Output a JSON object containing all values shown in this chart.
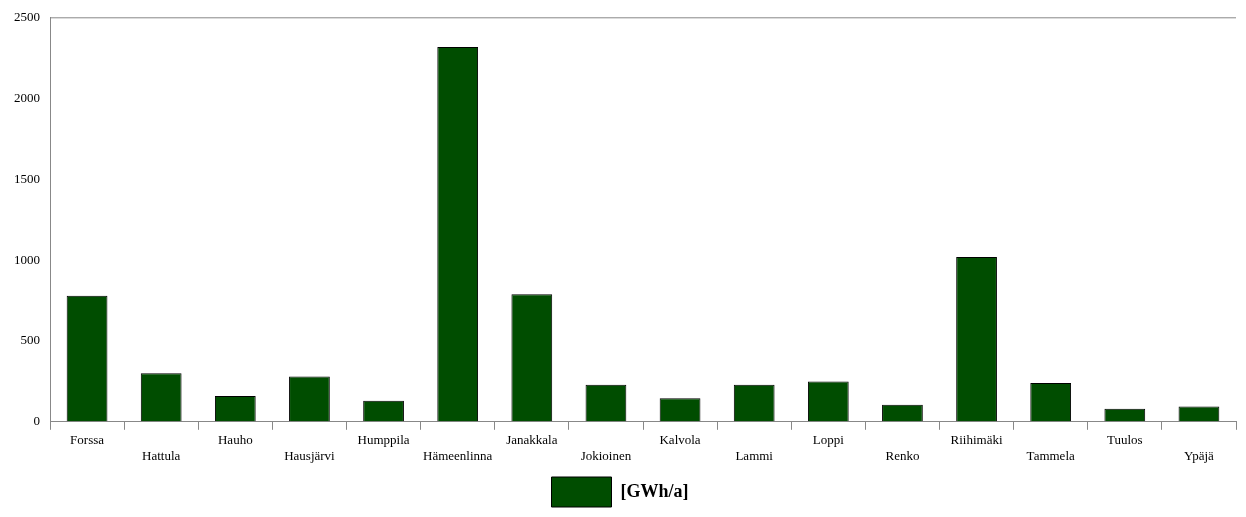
{
  "chart_data": {
    "type": "bar",
    "categories": [
      "Forssa",
      "Hattula",
      "Hauho",
      "Hausjärvi",
      "Humppila",
      "Hämeenlinna",
      "Janakkala",
      "Jokioinen",
      "Kalvola",
      "Lammi",
      "Loppi",
      "Renko",
      "Riihimäki",
      "Tammela",
      "Tuulos",
      "Ypäjä"
    ],
    "series": [
      {
        "name": "[GWh/a]",
        "color": "#004d00",
        "values": [
          780,
          300,
          160,
          280,
          130,
          2320,
          790,
          230,
          145,
          230,
          250,
          105,
          1020,
          240,
          80,
          95
        ]
      }
    ],
    "ylim": [
      0,
      2500
    ],
    "yticks": [
      0,
      500,
      1000,
      1500,
      2000,
      2500
    ],
    "legend": "bottom"
  }
}
